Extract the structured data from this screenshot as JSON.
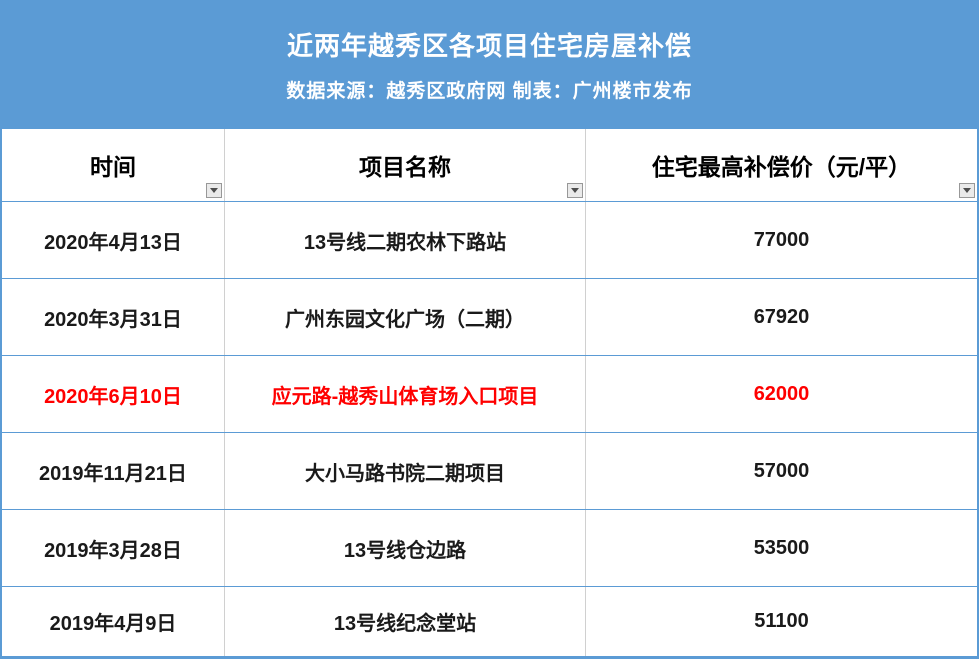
{
  "banner": {
    "title": "近两年越秀区各项目住宅房屋补偿",
    "subtitle": "数据来源：越秀区政府网 制表：广州楼市发布",
    "background_color": "#5B9BD5",
    "text_color": "#FFFFFF"
  },
  "table": {
    "columns": [
      {
        "label": "时间"
      },
      {
        "label": "项目名称"
      },
      {
        "label": "住宅最高补偿价（元/平）"
      }
    ],
    "rows": [
      {
        "date": "2020年4月13日",
        "project": "13号线二期农林下路站",
        "price": "77000",
        "highlight": false
      },
      {
        "date": "2020年3月31日",
        "project": "广州东园文化广场（二期）",
        "price": "67920",
        "highlight": false
      },
      {
        "date": "2020年6月10日",
        "project": "应元路-越秀山体育场入口项目",
        "price": "62000",
        "highlight": true
      },
      {
        "date": "2019年11月21日",
        "project": "大小马路书院二期项目",
        "price": "57000",
        "highlight": false
      },
      {
        "date": "2019年3月28日",
        "project": "13号线仓边路",
        "price": "53500",
        "highlight": false
      },
      {
        "date": "2019年4月9日",
        "project": "13号线纪念堂站",
        "price": "51100",
        "highlight": false
      }
    ],
    "colors": {
      "highlight_text": "#FF0000",
      "row_border": "#5B9BD5",
      "column_border": "#D0D0D0",
      "filter_button_bg": "#EAEAEA",
      "filter_button_border": "#989898"
    }
  }
}
